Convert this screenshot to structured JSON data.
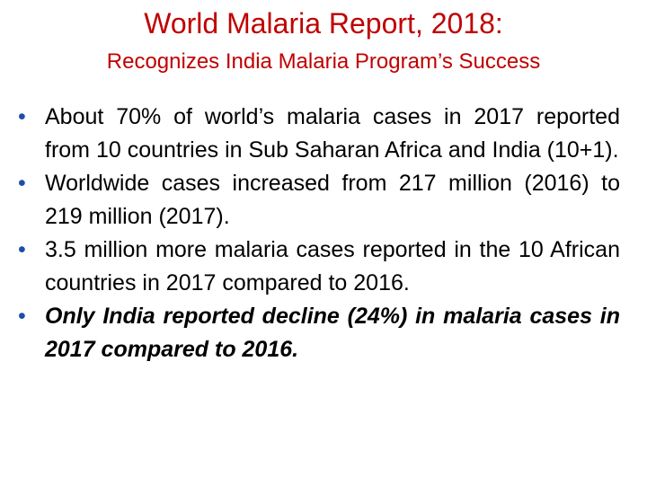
{
  "slide": {
    "title": "World Malaria Report, 2018:",
    "subtitle": "Recognizes India Malaria Program’s Success",
    "bullet_symbol": "•",
    "bullets": [
      "About 70% of world’s malaria cases in 2017 reported from 10 countries in Sub Saharan Africa and India (10+1).",
      "Worldwide cases increased  from 217 million (2016) to 219 million (2017).",
      "3.5 million more malaria cases reported in the 10 African countries in 2017 compared to 2016.",
      "Only India reported decline (24%) in malaria cases in 2017 compared to 2016."
    ]
  },
  "colors": {
    "title": "#c00000",
    "bullet": "#1f4ea8",
    "text": "#000000"
  }
}
